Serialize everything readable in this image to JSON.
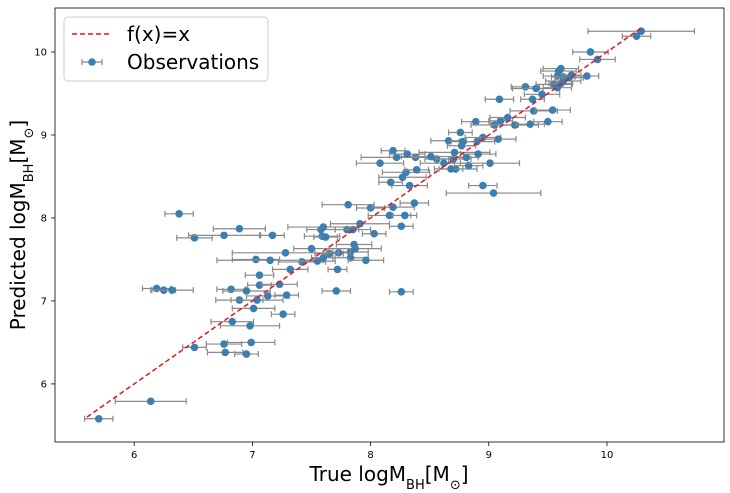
{
  "chart_data": {
    "type": "scatter",
    "xlabel": "True logM_BH[M_⊙]",
    "ylabel": "Predicted logM_BH[M_⊙]",
    "xlabel_parts": {
      "main": "True logM",
      "sub": "BH",
      "bracket_open": "[M",
      "sub2": "⊙",
      "bracket_close": "]"
    },
    "ylabel_parts": {
      "main": "Predicted logM",
      "sub": "BH",
      "bracket_open": "[M",
      "sub2": "⊙",
      "bracket_close": "]"
    },
    "xlim": [
      5.33,
      10.99
    ],
    "ylim": [
      5.3,
      10.53
    ],
    "xticks": [
      "6",
      "7",
      "8",
      "9",
      "10"
    ],
    "yticks": [
      "6",
      "7",
      "8",
      "9",
      "10"
    ],
    "grid": false,
    "legend_position": "upper-left",
    "series": [
      {
        "name": "f(x)=x",
        "kind": "line",
        "style": "dashed",
        "color": "#e8141b",
        "x": [
          5.6,
          10.3
        ],
        "y": [
          5.6,
          10.3
        ]
      },
      {
        "name": "Observations",
        "kind": "errorbar",
        "color": "#3a7fb0",
        "errbar_color": "#8a8a8a",
        "points": [
          [
            5.7,
            5.58,
            0.12
          ],
          [
            6.14,
            5.79,
            0.3
          ],
          [
            6.51,
            6.44,
            0.1
          ],
          [
            6.76,
            6.48,
            0.15
          ],
          [
            6.77,
            6.38,
            0.15
          ],
          [
            6.99,
            6.5,
            0.2
          ],
          [
            6.95,
            6.36,
            0.1
          ],
          [
            6.83,
            6.75,
            0.18
          ],
          [
            6.98,
            6.7,
            0.25
          ],
          [
            7.01,
            6.91,
            0.18
          ],
          [
            7.26,
            6.84,
            0.1
          ],
          [
            6.19,
            7.15,
            0.12
          ],
          [
            6.25,
            7.13,
            0.1
          ],
          [
            6.32,
            7.13,
            0.18
          ],
          [
            6.82,
            7.14,
            0.12
          ],
          [
            6.95,
            7.12,
            0.2
          ],
          [
            6.89,
            7.01,
            0.2
          ],
          [
            7.04,
            7.01,
            0.22
          ],
          [
            7.13,
            7.06,
            0.18
          ],
          [
            7.29,
            7.07,
            0.1
          ],
          [
            7.71,
            7.12,
            0.12
          ],
          [
            8.26,
            7.11,
            0.1
          ],
          [
            7.06,
            7.19,
            0.1
          ],
          [
            7.23,
            7.2,
            0.15
          ],
          [
            7.06,
            7.31,
            0.12
          ],
          [
            7.32,
            7.38,
            0.15
          ],
          [
            7.72,
            7.38,
            0.08
          ],
          [
            7.03,
            7.5,
            0.2
          ],
          [
            7.15,
            7.49,
            0.45
          ],
          [
            7.42,
            7.47,
            0.2
          ],
          [
            7.55,
            7.48,
            0.15
          ],
          [
            7.6,
            7.52,
            0.1
          ],
          [
            7.83,
            7.52,
            0.15
          ],
          [
            7.96,
            7.49,
            0.15
          ],
          [
            7.83,
            7.59,
            0.15
          ],
          [
            7.65,
            7.57,
            0.12
          ],
          [
            7.73,
            7.58,
            0.1
          ],
          [
            7.28,
            7.58,
            0.45
          ],
          [
            7.5,
            7.63,
            0.15
          ],
          [
            7.86,
            7.68,
            0.15
          ],
          [
            7.87,
            7.63,
            0.22
          ],
          [
            8.03,
            7.81,
            0.1
          ],
          [
            6.51,
            7.76,
            0.15
          ],
          [
            6.76,
            7.79,
            0.3
          ],
          [
            7.17,
            7.79,
            0.1
          ],
          [
            7.59,
            7.78,
            0.15
          ],
          [
            7.62,
            7.77,
            0.1
          ],
          [
            6.89,
            7.87,
            0.22
          ],
          [
            7.58,
            7.86,
            0.12
          ],
          [
            7.8,
            7.86,
            0.1
          ],
          [
            7.85,
            7.86,
            0.15
          ],
          [
            7.91,
            7.93,
            0.25
          ],
          [
            8.26,
            7.9,
            0.1
          ],
          [
            7.6,
            7.89,
            0.3
          ],
          [
            6.38,
            8.05,
            0.12
          ],
          [
            8.16,
            8.03,
            0.18
          ],
          [
            8.29,
            8.03,
            0.1
          ],
          [
            7.81,
            8.16,
            0.22
          ],
          [
            8.0,
            8.12,
            0.12
          ],
          [
            8.19,
            8.13,
            0.18
          ],
          [
            8.37,
            8.18,
            0.12
          ],
          [
            9.04,
            8.3,
            0.4
          ],
          [
            8.95,
            8.39,
            0.12
          ],
          [
            8.33,
            8.39,
            0.15
          ],
          [
            8.17,
            8.43,
            0.1
          ],
          [
            8.27,
            8.49,
            0.2
          ],
          [
            8.3,
            8.55,
            0.2
          ],
          [
            8.39,
            8.58,
            0.1
          ],
          [
            8.72,
            8.59,
            0.18
          ],
          [
            8.62,
            8.66,
            0.2
          ],
          [
            8.83,
            8.63,
            0.12
          ],
          [
            8.08,
            8.66,
            0.2
          ],
          [
            8.68,
            8.59,
            0.1
          ],
          [
            9.01,
            8.66,
            0.25
          ],
          [
            8.56,
            8.71,
            0.1
          ],
          [
            8.7,
            8.71,
            0.15
          ],
          [
            8.81,
            8.73,
            0.1
          ],
          [
            8.38,
            8.73,
            0.15
          ],
          [
            8.22,
            8.73,
            0.3
          ],
          [
            8.51,
            8.74,
            0.25
          ],
          [
            8.19,
            8.81,
            0.1
          ],
          [
            8.31,
            8.77,
            0.15
          ],
          [
            8.71,
            8.79,
            0.3
          ],
          [
            8.91,
            8.77,
            0.15
          ],
          [
            8.77,
            8.87,
            0.12
          ],
          [
            8.9,
            8.92,
            0.15
          ],
          [
            8.66,
            8.93,
            0.15
          ],
          [
            8.78,
            8.92,
            0.1
          ],
          [
            8.95,
            8.97,
            0.15
          ],
          [
            9.08,
            8.95,
            0.15
          ],
          [
            8.76,
            9.03,
            0.1
          ],
          [
            8.89,
            9.16,
            0.12
          ],
          [
            9.05,
            9.12,
            0.2
          ],
          [
            9.1,
            9.17,
            0.1
          ],
          [
            9.16,
            9.21,
            0.15
          ],
          [
            9.22,
            9.12,
            0.2
          ],
          [
            9.35,
            9.13,
            0.12
          ],
          [
            9.38,
            9.29,
            0.2
          ],
          [
            9.5,
            9.16,
            0.12
          ],
          [
            9.54,
            9.3,
            0.15
          ],
          [
            9.37,
            9.43,
            0.1
          ],
          [
            9.45,
            9.49,
            0.15
          ],
          [
            9.09,
            9.43,
            0.12
          ],
          [
            9.31,
            9.58,
            0.12
          ],
          [
            9.4,
            9.56,
            0.2
          ],
          [
            9.55,
            9.61,
            0.15
          ],
          [
            9.58,
            9.57,
            0.12
          ],
          [
            9.61,
            9.62,
            0.1
          ],
          [
            9.63,
            9.65,
            0.15
          ],
          [
            9.58,
            9.71,
            0.12
          ],
          [
            9.63,
            9.7,
            0.1
          ],
          [
            9.68,
            9.69,
            0.12
          ],
          [
            9.7,
            9.72,
            0.08
          ],
          [
            9.59,
            9.77,
            0.15
          ],
          [
            9.61,
            9.8,
            0.15
          ],
          [
            9.83,
            9.71,
            0.1
          ],
          [
            9.92,
            9.91,
            0.15
          ],
          [
            9.86,
            10.0,
            0.15
          ],
          [
            10.25,
            10.19,
            0.12
          ],
          [
            10.29,
            10.25,
            0.45
          ]
        ]
      }
    ]
  }
}
